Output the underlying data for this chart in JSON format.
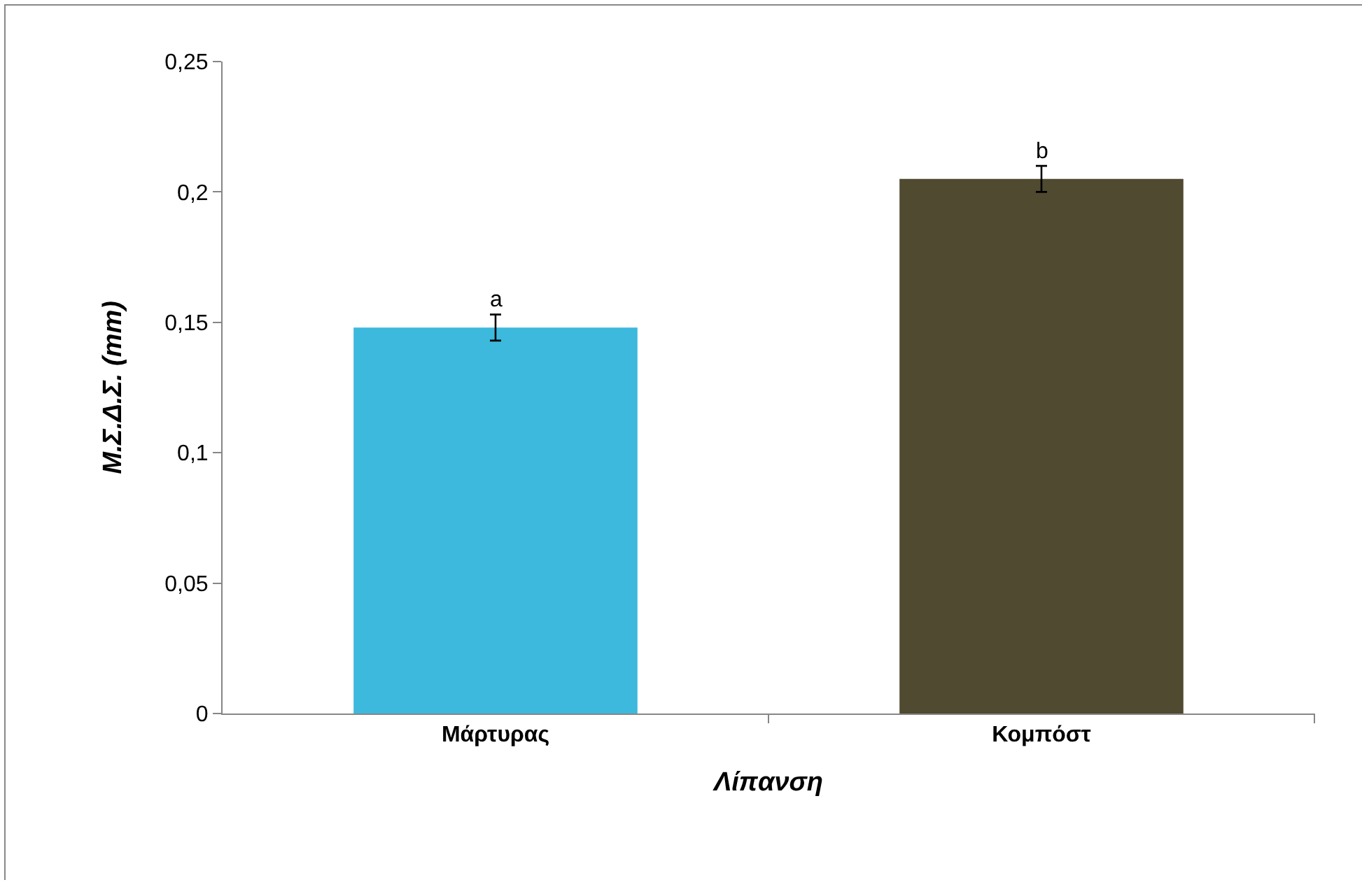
{
  "chart_data": {
    "type": "bar",
    "xlabel": "Λίπανση",
    "ylabel": "Μ.Σ.Δ.Σ. (mm)",
    "categories": [
      "Μάρτυρας",
      "Κομπόστ"
    ],
    "values": [
      0.148,
      0.205
    ],
    "colors": [
      "#3cb9dd",
      "#4f4a30"
    ],
    "errors": [
      0.005,
      0.005
    ],
    "ylim": [
      0,
      0.25
    ],
    "yticks": [
      0,
      {
        "value": 0.05,
        "label": "0,05"
      },
      {
        "value": 0.1,
        "label": "0,1"
      },
      {
        "value": 0.15,
        "label": "0,15"
      },
      {
        "value": 0.2,
        "label": "0,2"
      },
      {
        "value": 0.25,
        "label": "0,25"
      }
    ],
    "annotations": [
      {
        "text": "a",
        "x": "Μάρτυρας",
        "y": 0.153
      },
      {
        "text": "b",
        "x": "Κομπόστ",
        "y": 0.21
      }
    ]
  }
}
